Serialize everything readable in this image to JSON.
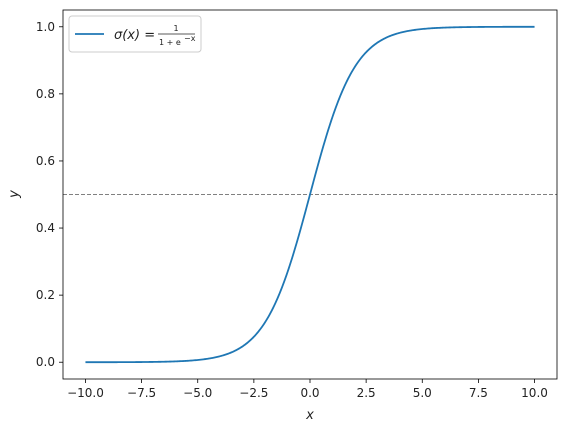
{
  "chart_data": {
    "type": "line",
    "title": "",
    "xlabel": "x",
    "ylabel": "y",
    "xlim": [
      -11.0,
      11.0
    ],
    "ylim": [
      -0.05,
      1.05
    ],
    "xticks": [
      -10.0,
      -7.5,
      -5.0,
      -2.5,
      0.0,
      2.5,
      5.0,
      7.5,
      10.0
    ],
    "xtick_labels": [
      "−10.0",
      "−7.5",
      "−5.0",
      "−2.5",
      "0.0",
      "2.5",
      "5.0",
      "7.5",
      "10.0"
    ],
    "yticks": [
      0.0,
      0.2,
      0.4,
      0.6,
      0.8,
      1.0
    ],
    "ytick_labels": [
      "0.0",
      "0.2",
      "0.4",
      "0.6",
      "0.8",
      "1.0"
    ],
    "grid": false,
    "legend_position": "top-left",
    "series": [
      {
        "name": "σ(x) = 1 / (1 + e^−x)",
        "color": "#1f77b4",
        "x": [
          -10,
          -9,
          -8,
          -7,
          -6,
          -5,
          -4,
          -3,
          -2.5,
          -2,
          -1.5,
          -1,
          -0.5,
          0,
          0.5,
          1,
          1.5,
          2,
          2.5,
          3,
          4,
          5,
          6,
          7,
          8,
          9,
          10
        ],
        "y": [
          4.54e-05,
          0.0001234,
          0.0003354,
          0.000911,
          0.002473,
          0.006693,
          0.017986,
          0.047426,
          0.075858,
          0.119203,
          0.182426,
          0.268941,
          0.377541,
          0.5,
          0.622459,
          0.731059,
          0.817574,
          0.880797,
          0.924142,
          0.952574,
          0.982014,
          0.993307,
          0.997527,
          0.999089,
          0.999665,
          0.999877,
          0.999955
        ]
      }
    ],
    "reference_lines": [
      {
        "orientation": "horizontal",
        "y": 0.5,
        "style": "dashed",
        "color": "#808080"
      }
    ]
  },
  "legend": {
    "prefix": "σ(x) =",
    "numerator": "1",
    "denominator": "1 + e",
    "exponent": "−x"
  }
}
